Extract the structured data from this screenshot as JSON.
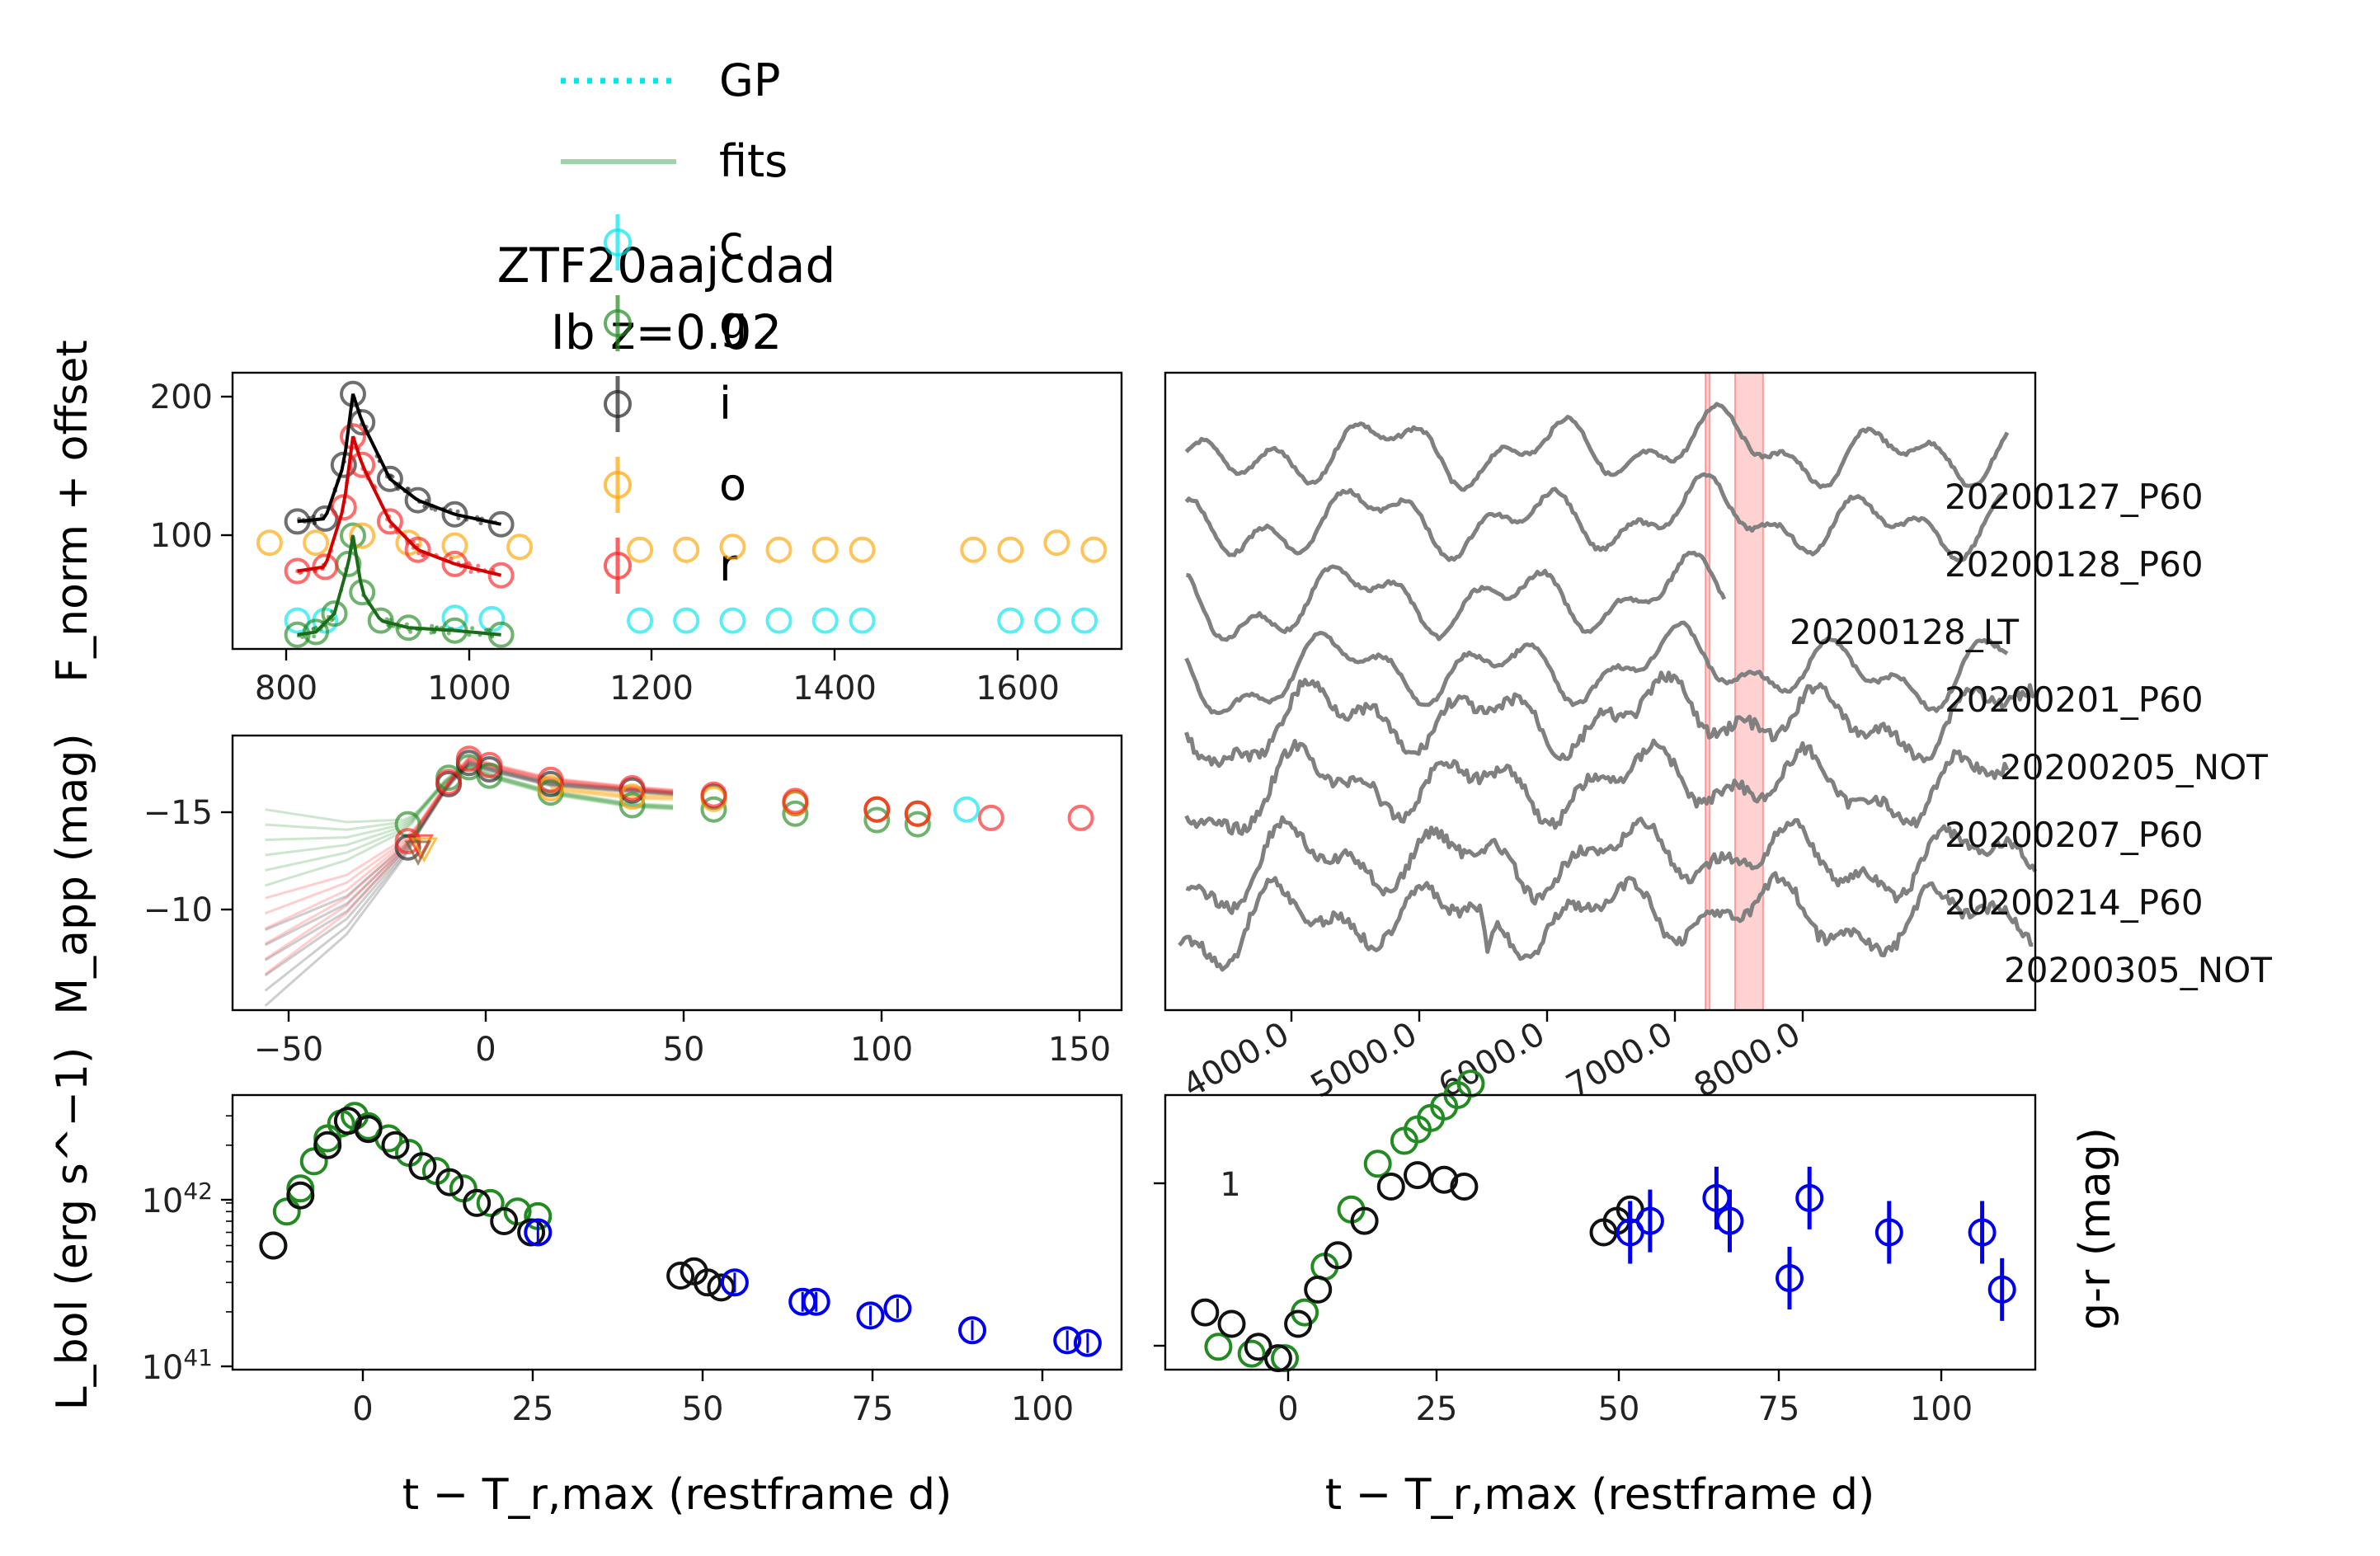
{
  "title": {
    "line1": "ZTF20aajcdad",
    "line2": "Ib z=0.02"
  },
  "legend": [
    {
      "label": "GP",
      "color": "#00e5ee",
      "kind": "dotted-line"
    },
    {
      "label": "fits",
      "color": "#9fd4a8",
      "kind": "line"
    },
    {
      "label": "c",
      "color": "#00e5ee",
      "kind": "marker"
    },
    {
      "label": "g",
      "color": "#228b22",
      "kind": "marker"
    },
    {
      "label": "i",
      "color": "#222222",
      "kind": "marker"
    },
    {
      "label": "o",
      "color": "#ffa500",
      "kind": "marker"
    },
    {
      "label": "r",
      "color": "#ff2020",
      "kind": "marker"
    }
  ],
  "panels": {
    "flux": {
      "ylabel": "F_norm + offset",
      "x_ticks": [
        "800",
        "1000",
        "1200",
        "1400",
        "1600"
      ],
      "y_ticks": [
        "100",
        "200"
      ]
    },
    "mag": {
      "ylabel": "M_app (mag)",
      "x_ticks": [
        "−50",
        "0",
        "50",
        "100",
        "150"
      ],
      "y_ticks": [
        "−15",
        "−10"
      ]
    },
    "lbol": {
      "ylabel": "L_bol (erg s^−1)",
      "xlabel": "t − T_r,max (restframe d)",
      "x_ticks": [
        "0",
        "25",
        "50",
        "75",
        "100"
      ],
      "y_ticks": [
        "10^42",
        "10^41"
      ]
    },
    "color": {
      "ylabel": "g-r (mag)",
      "xlabel": "t − T_r,max (restframe d)",
      "x_ticks": [
        "0",
        "25",
        "50",
        "75",
        "100"
      ],
      "y_ticks": [
        "1"
      ]
    },
    "spectra": {
      "labels": [
        "20200127_P60",
        "20200128_P60",
        "20200128_LT",
        "20200201_P60",
        "20200205_NOT",
        "20200207_P60",
        "20200214_P60",
        "20200305_NOT"
      ],
      "x_ticks": [
        "4000.0",
        "5000.0",
        "6000.0",
        "7000.0",
        "8000.0"
      ]
    }
  },
  "chart_data": [
    {
      "type": "scatter",
      "panel": "flux",
      "ylabel": "F_norm + offset",
      "xlim": [
        760,
        1720
      ],
      "ylim": [
        20,
        215
      ],
      "series": [
        {
          "name": "c",
          "color": "#00e5ee",
          "x": [
            830,
            860,
            1000,
            1040,
            1200,
            1250,
            1300,
            1350,
            1400,
            1440,
            1600,
            1640,
            1680
          ],
          "y": [
            40,
            40,
            42,
            41,
            40,
            40,
            40,
            40,
            40,
            40,
            40,
            40,
            40
          ]
        },
        {
          "name": "g",
          "color": "#228b22",
          "x": [
            830,
            850,
            870,
            885,
            890,
            900,
            920,
            950,
            1000,
            1050
          ],
          "y": [
            30,
            32,
            45,
            80,
            100,
            60,
            40,
            35,
            33,
            30
          ]
        },
        {
          "name": "i",
          "color": "#222222",
          "x": [
            830,
            860,
            880,
            890,
            900,
            930,
            960,
            1000,
            1050
          ],
          "y": [
            110,
            112,
            150,
            200,
            180,
            140,
            125,
            115,
            108
          ]
        },
        {
          "name": "o",
          "color": "#ffa500",
          "x": [
            800,
            850,
            900,
            950,
            1000,
            1070,
            1200,
            1250,
            1300,
            1350,
            1400,
            1440,
            1560,
            1600,
            1650,
            1690
          ],
          "y": [
            95,
            95,
            100,
            95,
            93,
            92,
            90,
            90,
            92,
            90,
            90,
            90,
            90,
            90,
            95,
            90
          ]
        },
        {
          "name": "r",
          "color": "#ff2020",
          "x": [
            830,
            860,
            880,
            890,
            900,
            930,
            960,
            1000,
            1050
          ],
          "y": [
            75,
            78,
            120,
            170,
            150,
            110,
            90,
            80,
            72
          ]
        }
      ]
    },
    {
      "type": "line",
      "panel": "mag",
      "ylabel": "M_app (mag)",
      "xlim": [
        -58,
        160
      ],
      "ylim": [
        -5.5,
        -18.5
      ],
      "series": [
        {
          "name": "g",
          "color": "#228b22",
          "x": [
            -50,
            -30,
            -15,
            -5,
            0,
            5,
            20,
            40,
            60,
            80,
            100,
            110
          ],
          "y": [
            -13.2,
            -13.5,
            -14.3,
            -16.5,
            -17.0,
            -16.6,
            -15.8,
            -15.2,
            -15.0,
            -14.8,
            -14.5,
            -14.3
          ]
        },
        {
          "name": "i",
          "color": "#222222",
          "x": [
            -50,
            -30,
            -15,
            -5,
            0,
            5,
            20,
            40,
            60,
            80,
            100,
            110
          ],
          "y": [
            -7.5,
            -10.0,
            -13.2,
            -16.2,
            -17.2,
            -16.9,
            -16.2,
            -15.9,
            -15.6,
            -15.3,
            -15.0,
            -14.8
          ]
        },
        {
          "name": "o",
          "color": "#ffa500",
          "x": [
            20,
            40,
            60,
            80,
            100,
            110
          ],
          "y": [
            -16.0,
            -15.6,
            -15.5,
            -15.3,
            -15.0,
            -14.8
          ]
        },
        {
          "name": "r",
          "color": "#ff2020",
          "x": [
            -50,
            -30,
            -15,
            -5,
            0,
            5,
            20,
            40,
            60,
            80,
            100,
            110,
            128,
            150
          ],
          "y": [
            -9.0,
            -11.0,
            -13.5,
            -16.3,
            -17.4,
            -17.1,
            -16.4,
            -16.0,
            -15.7,
            -15.4,
            -15.0,
            -14.8,
            -14.6,
            -14.6
          ]
        },
        {
          "name": "c",
          "color": "#00e5ee",
          "x": [
            122
          ],
          "y": [
            -15.0
          ]
        }
      ]
    },
    {
      "type": "scatter",
      "panel": "lbol",
      "ylabel": "L_bol (erg s^-1)",
      "yscale": "log",
      "xlim": [
        -18,
        113
      ],
      "ylim": [
        9e+40,
        4e+42
      ],
      "series": [
        {
          "name": "g",
          "color": "#228b22",
          "x": [
            -12,
            -10,
            -8,
            -6,
            -4,
            -2,
            0,
            2,
            5,
            8,
            12,
            16,
            20,
            24,
            27
          ],
          "y": [
            5e+41,
            8e+41,
            1.1e+42,
            1.6e+42,
            2.2e+42,
            2.7e+42,
            3e+42,
            2.6e+42,
            2.2e+42,
            1.8e+42,
            1.4e+42,
            1.1e+42,
            9e+41,
            8e+41,
            7.5e+41
          ]
        },
        {
          "name": "i",
          "color": "#111111",
          "x": [
            -12,
            -8,
            -4,
            -1,
            2,
            6,
            10,
            14,
            18,
            22,
            26,
            48,
            50,
            52,
            54
          ],
          "y": [
            5e+41,
            1e+42,
            2e+42,
            2.8e+42,
            2.5e+42,
            2e+42,
            1.5e+42,
            1.2e+42,
            9e+41,
            7e+41,
            6e+41,
            3.3e+41,
            3.5e+41,
            3e+41,
            2.8e+41
          ]
        },
        {
          "name": "r",
          "color": "#0000ee",
          "x": [
            27,
            56,
            66,
            68,
            76,
            80,
            91,
            105,
            108
          ],
          "y": [
            6e+41,
            3e+41,
            2.3e+41,
            2.3e+41,
            1.9e+41,
            2.1e+41,
            1.55e+41,
            1.35e+41,
            1.3e+41
          ]
        }
      ]
    },
    {
      "type": "scatter",
      "panel": "color",
      "ylabel": "g-r (mag)",
      "xlim": [
        -18,
        113
      ],
      "ylim": [
        -0.05,
        1.15
      ],
      "series": [
        {
          "name": "g",
          "color": "#228b22",
          "x": [
            -10,
            -5,
            0,
            3,
            6,
            10,
            14,
            18,
            20,
            22,
            24,
            26,
            28
          ],
          "y": [
            0.05,
            0.02,
            0.0,
            0.2,
            0.4,
            0.65,
            0.85,
            0.95,
            1.0,
            1.05,
            1.1,
            1.15,
            1.2
          ]
        },
        {
          "name": "i",
          "color": "#111111",
          "x": [
            -12,
            -8,
            -4,
            -1,
            2,
            5,
            8,
            12,
            16,
            20,
            24,
            27,
            48,
            50,
            52
          ],
          "y": [
            0.2,
            0.15,
            0.05,
            0.0,
            0.15,
            0.3,
            0.45,
            0.6,
            0.75,
            0.8,
            0.78,
            0.75,
            0.55,
            0.6,
            0.65
          ]
        },
        {
          "name": "r",
          "color": "#0000ee",
          "x": [
            52,
            55,
            65,
            67,
            76,
            79,
            91,
            105,
            108
          ],
          "y": [
            0.55,
            0.6,
            0.7,
            0.6,
            0.35,
            0.7,
            0.55,
            0.55,
            0.3
          ]
        }
      ]
    },
    {
      "type": "line",
      "panel": "spectra",
      "xlim": [
        3500,
        9700
      ],
      "ylim": [
        0,
        1
      ],
      "series": [
        {
          "name": "20200127_P60",
          "color": "#808080"
        },
        {
          "name": "20200128_P60",
          "color": "#808080"
        },
        {
          "name": "20200128_LT",
          "color": "#808080"
        },
        {
          "name": "20200201_P60",
          "color": "#808080"
        },
        {
          "name": "20200205_NOT",
          "color": "#808080"
        },
        {
          "name": "20200207_P60",
          "color": "#808080"
        },
        {
          "name": "20200214_P60",
          "color": "#808080"
        },
        {
          "name": "20200305_NOT",
          "color": "#808080"
        }
      ],
      "shaded_bands": [
        [
          7350,
          7380
        ],
        [
          7560,
          7760
        ]
      ]
    }
  ]
}
